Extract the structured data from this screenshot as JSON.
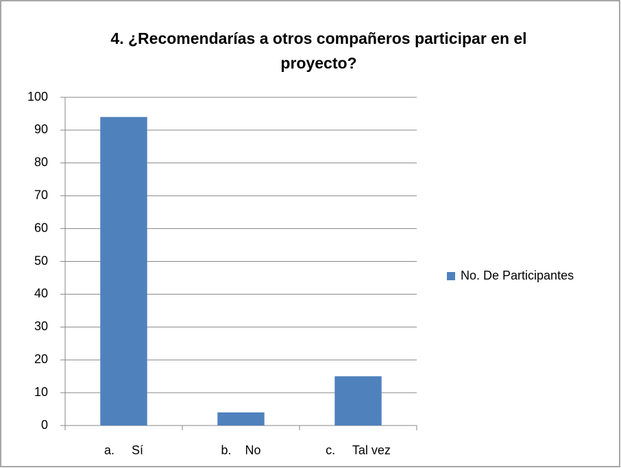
{
  "chart_data": {
    "type": "bar",
    "title": "4. ¿Recomendarías a otros compañeros participar en el proyecto?",
    "categories": [
      "a.     Sí",
      "b.    No",
      "c.     Tal vez"
    ],
    "series": [
      {
        "name": "No. De Participantes",
        "color": "#4f81bd",
        "values": [
          94,
          4,
          15
        ]
      }
    ],
    "ylim": [
      0,
      100
    ],
    "yticks": [
      0,
      10,
      20,
      30,
      40,
      50,
      60,
      70,
      80,
      90,
      100
    ],
    "grid": true,
    "legend": "right"
  }
}
